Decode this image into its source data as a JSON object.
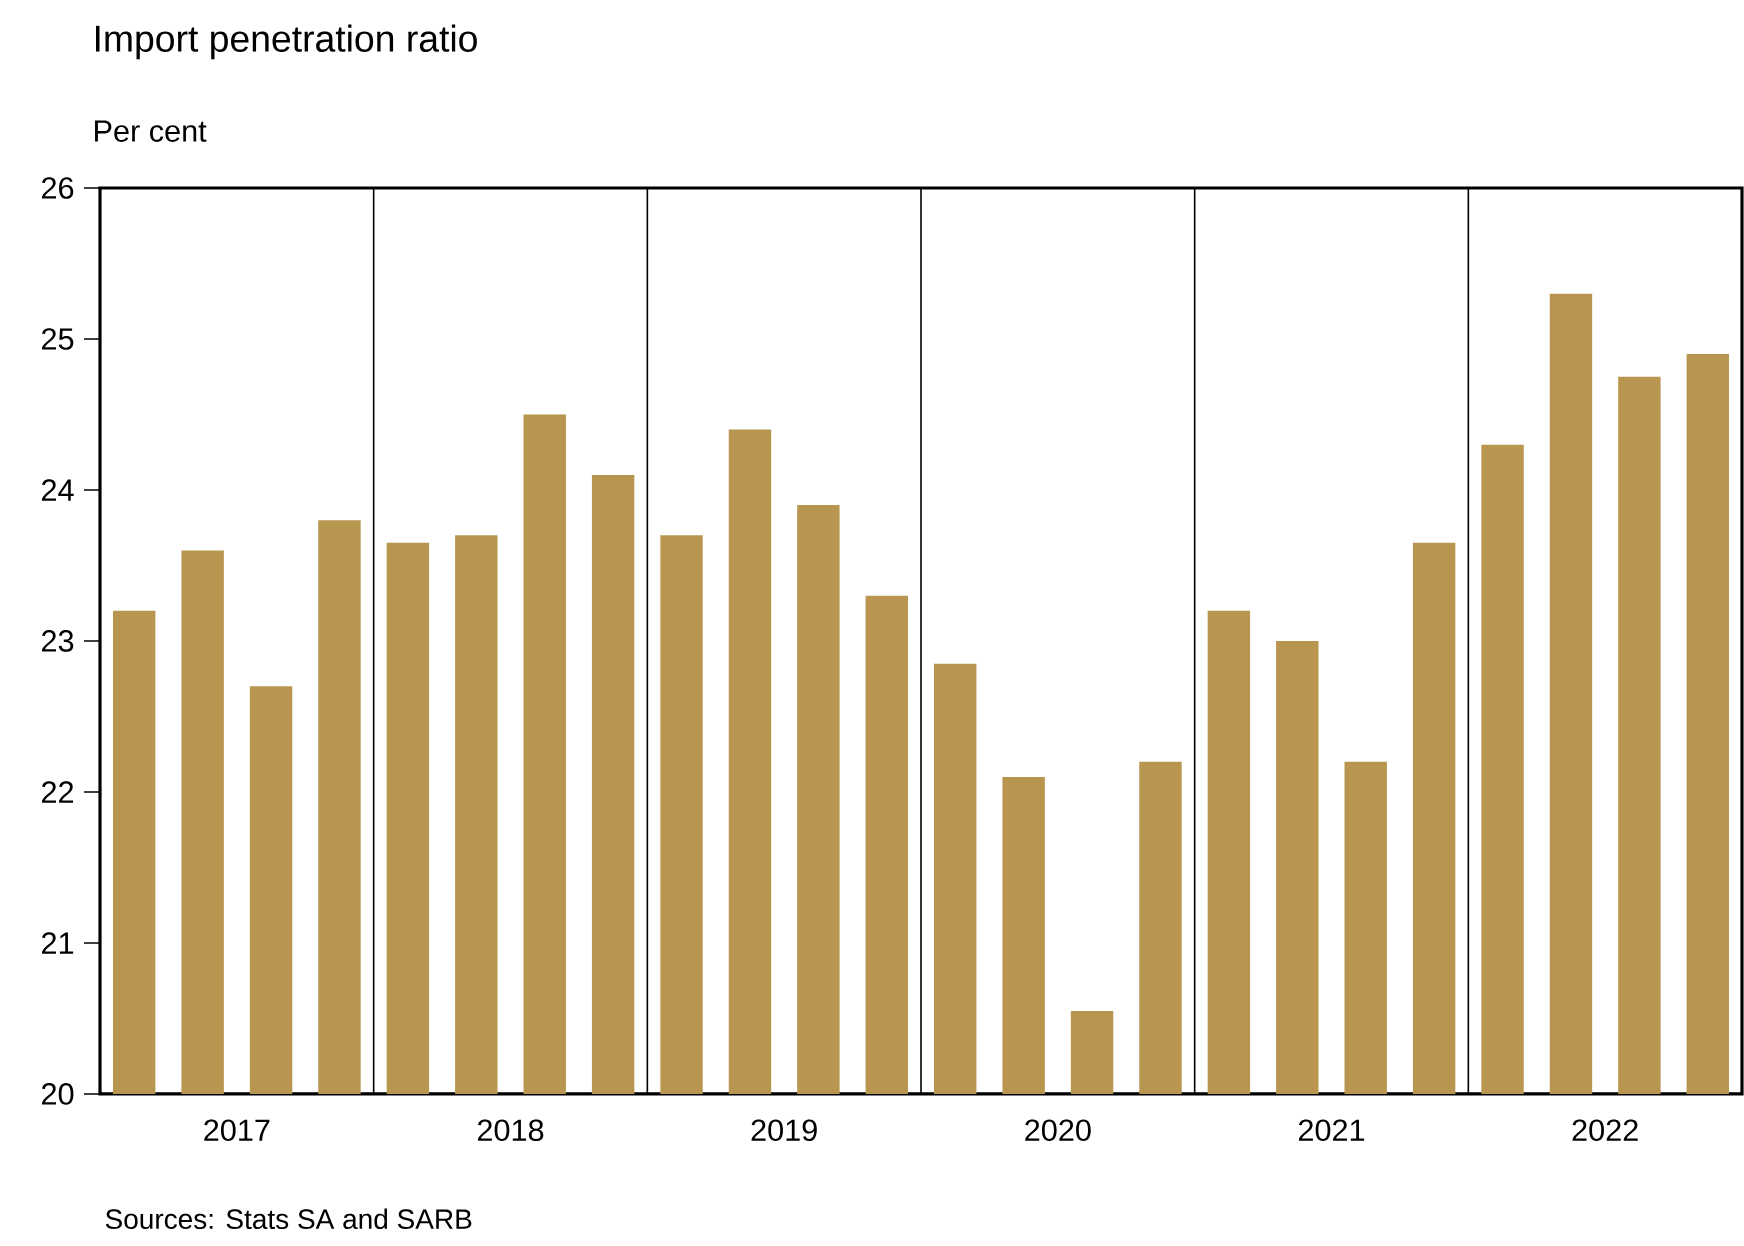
{
  "chart_data": {
    "type": "bar",
    "title": "Import penetration ratio",
    "ylabel": "Per cent",
    "x": [
      2017.125,
      2017.375,
      2017.625,
      2017.875,
      2018.125,
      2018.375,
      2018.625,
      2018.875,
      2019.125,
      2019.375,
      2019.625,
      2019.875,
      2020.125,
      2020.375,
      2020.625,
      2020.875,
      2021.125,
      2021.375,
      2021.625,
      2021.875,
      2022.125,
      2022.375,
      2022.625,
      2022.875
    ],
    "values": [
      23.2,
      23.6,
      22.7,
      23.8,
      23.65,
      23.7,
      24.5,
      24.1,
      23.7,
      24.4,
      23.9,
      23.3,
      22.85,
      22.1,
      20.55,
      22.2,
      23.2,
      23.0,
      22.2,
      23.65,
      24.3,
      25.3,
      24.75,
      24.9
    ],
    "color": "#b8964f",
    "xlim": [
      2017,
      2023
    ],
    "ylim": [
      20,
      26
    ],
    "xticks": [
      {
        "value": 2017.5,
        "label": "2017"
      },
      {
        "value": 2018.5,
        "label": "2018"
      },
      {
        "value": 2019.5,
        "label": "2019"
      },
      {
        "value": 2020.5,
        "label": "2020"
      },
      {
        "value": 2021.5,
        "label": "2021"
      },
      {
        "value": 2022.5,
        "label": "2022"
      }
    ],
    "yticks": [
      20,
      21,
      22,
      23,
      24,
      25,
      26
    ],
    "ref_lines": [
      {
        "axis": "x",
        "value": 2018,
        "color": "#000000"
      },
      {
        "axis": "x",
        "value": 2019,
        "color": "#000000"
      },
      {
        "axis": "x",
        "value": 2020,
        "color": "#000000"
      },
      {
        "axis": "x",
        "value": 2021,
        "color": "#000000"
      },
      {
        "axis": "x",
        "value": 2022,
        "color": "#000000"
      }
    ],
    "annotations": [
      "Sources: Stats SA and SARB"
    ]
  }
}
